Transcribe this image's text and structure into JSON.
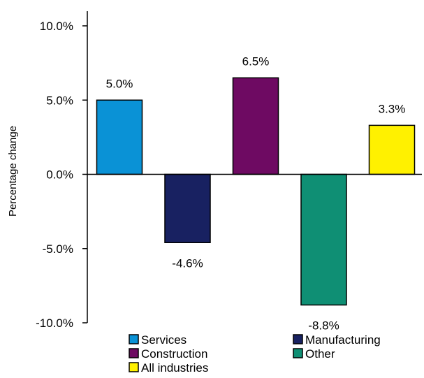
{
  "chart_data": {
    "type": "bar",
    "categories": [
      "Services",
      "Manufacturing",
      "Construction",
      "Other",
      "All industries"
    ],
    "values": [
      5.0,
      -4.6,
      6.5,
      -8.8,
      3.3
    ],
    "data_labels": [
      "5.0%",
      "-4.6%",
      "6.5%",
      "-8.8%",
      "3.3%"
    ],
    "colors": [
      "#0a92d6",
      "#182161",
      "#6e0a62",
      "#0f8f74",
      "#fff100"
    ],
    "title": "",
    "xlabel": "",
    "ylabel": "Percentage change",
    "ylim": [
      -10,
      10
    ],
    "yticks": [
      10,
      5,
      0,
      -5,
      -10
    ],
    "ytick_labels": [
      "10.0%",
      "5.0%",
      "0.0%",
      "-5.0%",
      "-10.0%"
    ],
    "grid": false,
    "legend": {
      "placement": "bottom",
      "entries": [
        "Services",
        "Manufacturing",
        "Construction",
        "Other",
        "All industries"
      ]
    }
  }
}
